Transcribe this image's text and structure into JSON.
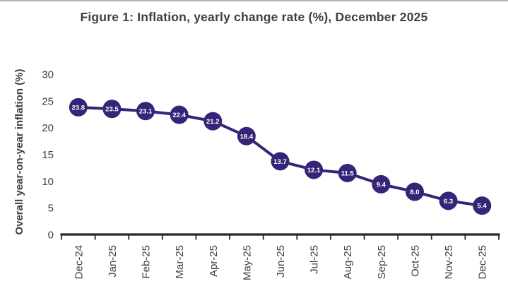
{
  "page": {
    "top_border_color": "#b3b3b3",
    "background_color": "#ffffff"
  },
  "chart_data": {
    "type": "line",
    "title": "Figure 1: Inflation, yearly change rate (%), December 2025",
    "xlabel": "",
    "ylabel": "Overall year-on-year inflation (%)",
    "categories": [
      "Dec-24",
      "Jan-25",
      "Feb-25",
      "Mar-25",
      "Apr-25",
      "May-25",
      "Jun-25",
      "Jul-25",
      "Aug-25",
      "Sep-25",
      "Oct-25",
      "Nov-25",
      "Dec-25"
    ],
    "values": [
      23.8,
      23.5,
      23.1,
      22.4,
      21.2,
      18.4,
      13.7,
      12.1,
      11.5,
      9.4,
      8.0,
      6.3,
      5.4
    ],
    "value_labels": [
      "23.8",
      "23.5",
      "23.1",
      "22.4",
      "21.2",
      "18.4",
      "13.7",
      "12.1",
      "11.5",
      "9.4",
      "8.0",
      "6.3",
      "5.4"
    ],
    "yticks": [
      0,
      5,
      10,
      15,
      20,
      25,
      30
    ],
    "ylim": [
      0,
      35
    ],
    "grid": false,
    "legend": "none",
    "marker_style": "filled-circle-with-label",
    "colors": {
      "line": "#362478",
      "marker": "#362478",
      "data_label_text": "#ffffff",
      "title_text": "#3f3f3f",
      "axis_line": "#262626",
      "tick_text": "#404040"
    }
  }
}
